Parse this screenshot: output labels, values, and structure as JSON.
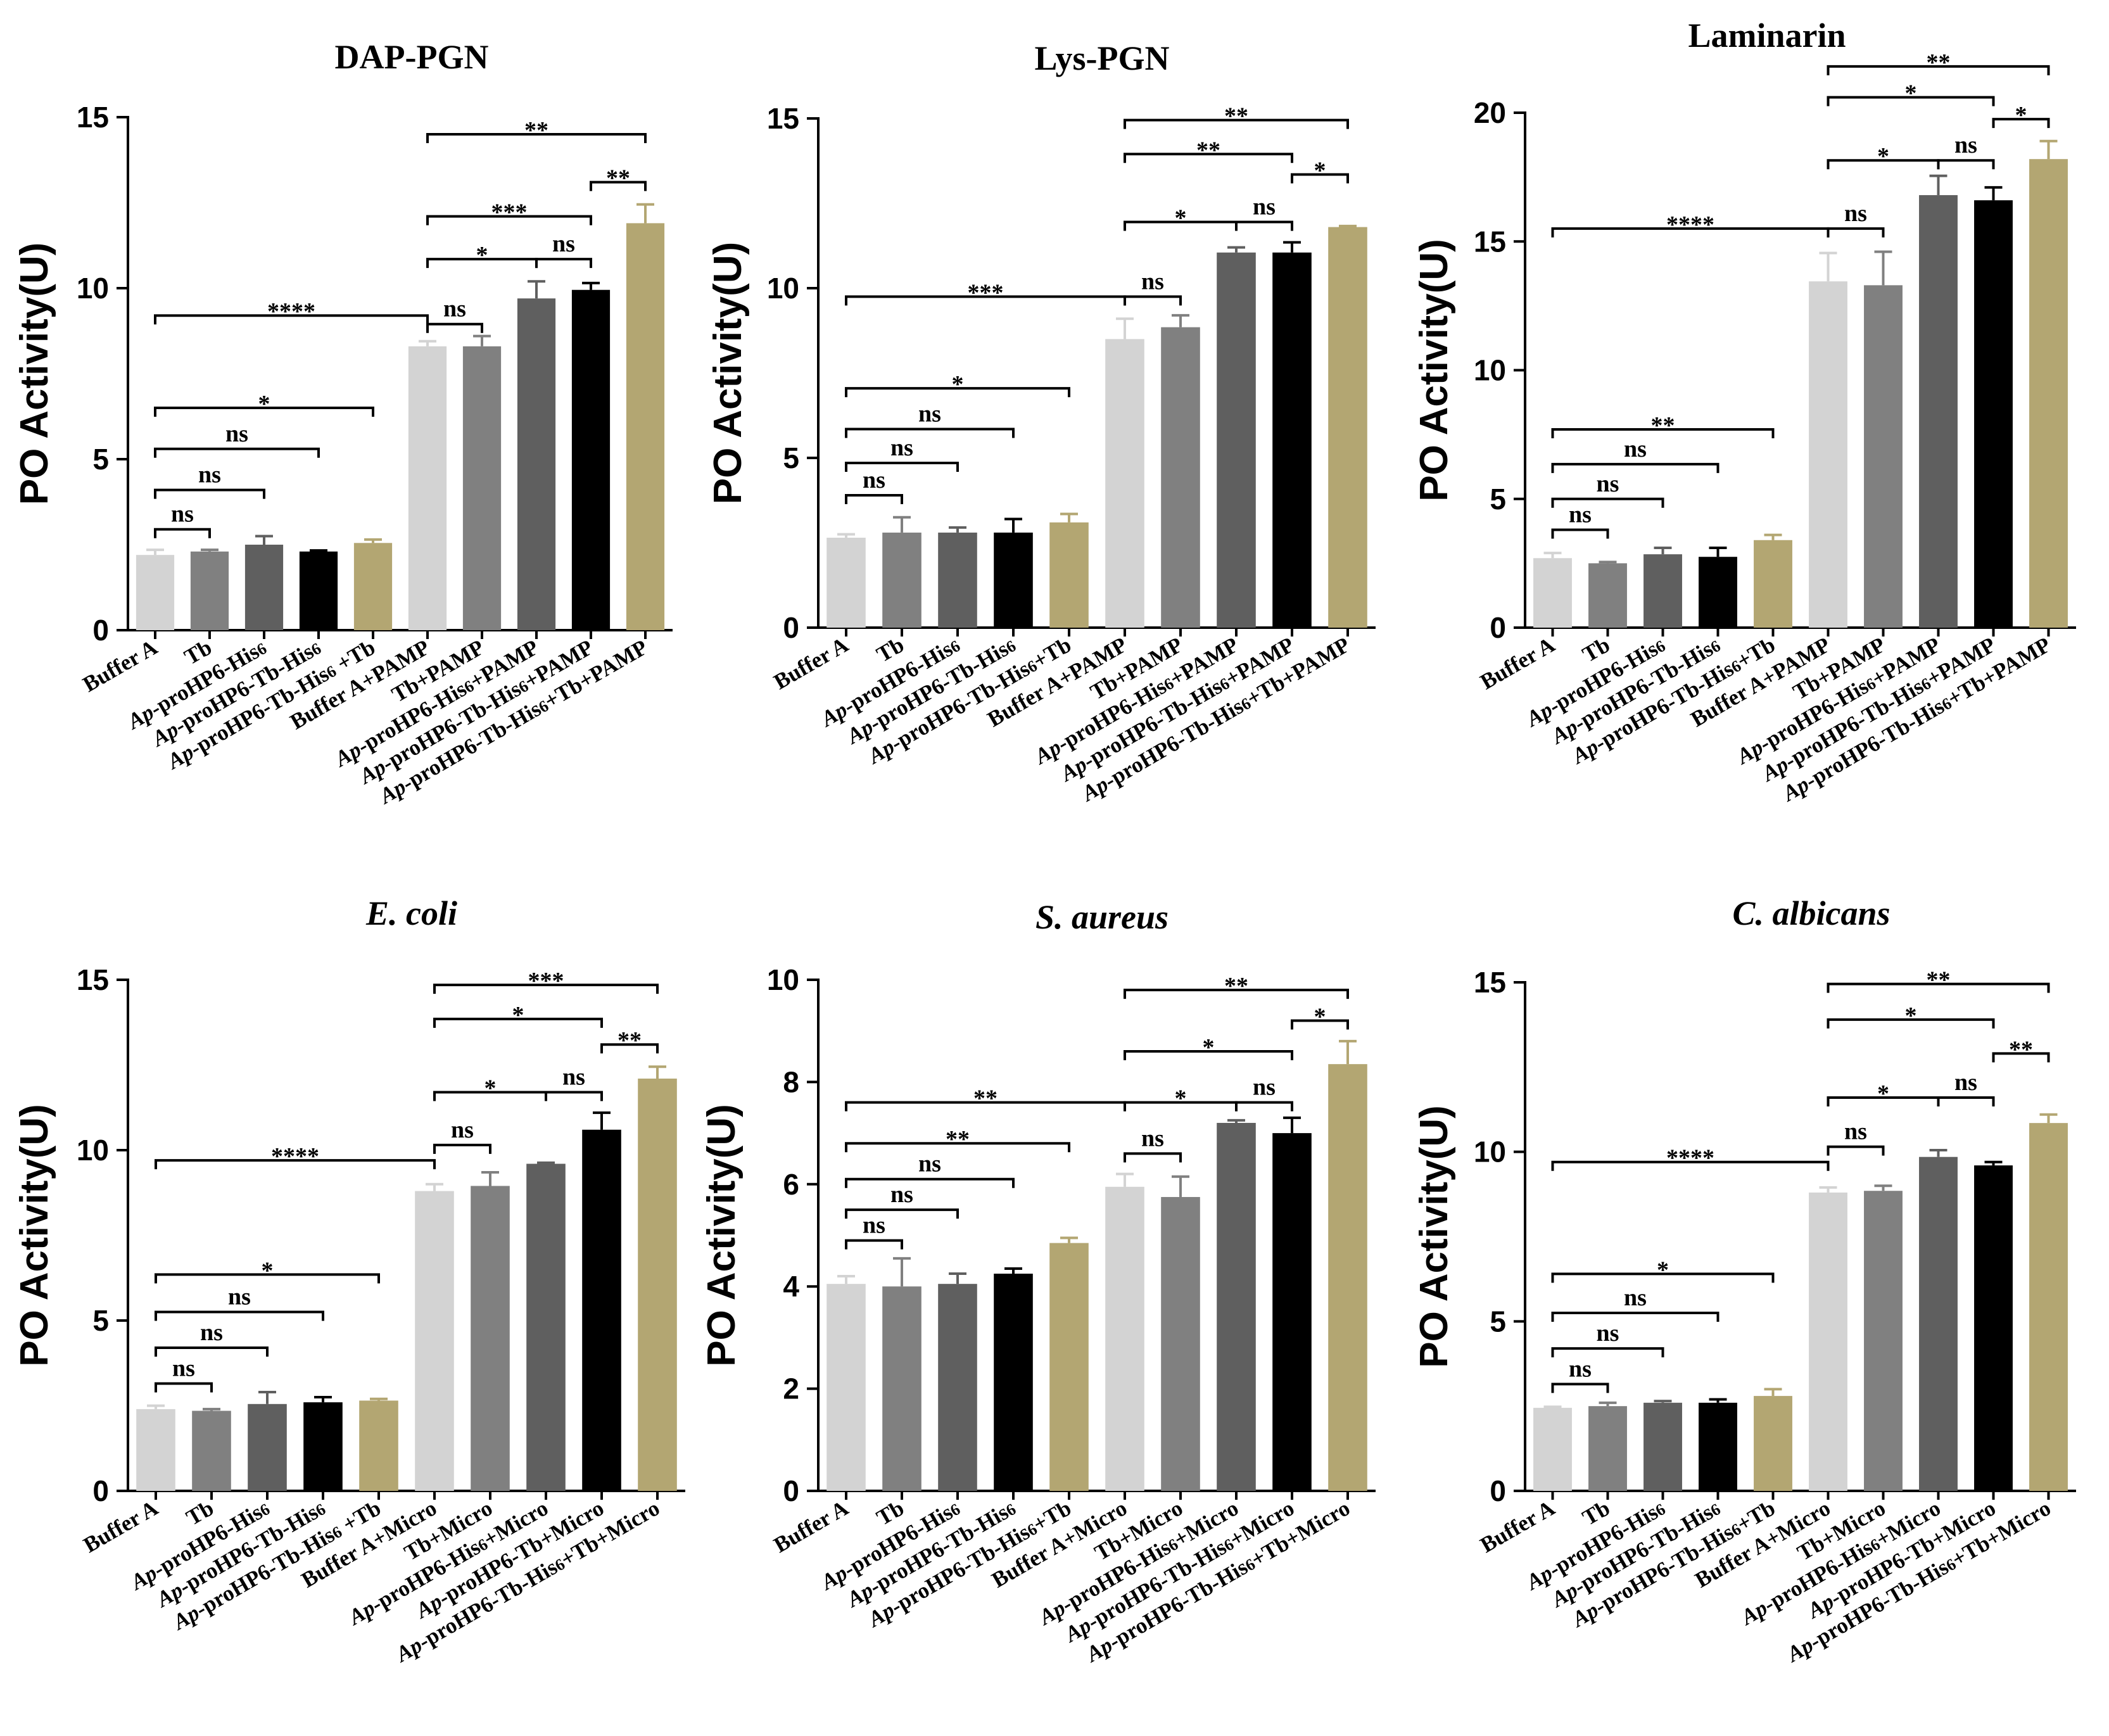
{
  "figure": {
    "y_axis_label": "PO Activity(U)",
    "bar_colors": [
      "#d3d3d3",
      "#808080",
      "#5f5f5f",
      "#000000",
      "#b3a672",
      "#d3d3d3",
      "#808080",
      "#5f5f5f",
      "#000000",
      "#b3a672"
    ]
  },
  "chart_data": [
    {
      "type": "bar",
      "title": "DAP-PGN",
      "title_italic": false,
      "ylabel": "PO Activity(U)",
      "ylim": [
        0,
        15
      ],
      "yticks": [
        0,
        5,
        10,
        15
      ],
      "categories": [
        "Buffer A",
        "Tb",
        "Ap-proHP6-His6",
        "Ap-proHP6-Tb-His6",
        "Ap-proHP6-Tb-His6 +Tb",
        "Buffer A+PAMP",
        "Tb+PAMP",
        "Ap-proHP6-His6+PAMP",
        "Ap-proHP6-Tb-His6+PAMP",
        "Ap-proHP6-Tb-His6+Tb+PAMP"
      ],
      "values": [
        2.2,
        2.3,
        2.5,
        2.3,
        2.55,
        8.3,
        8.3,
        9.7,
        9.95,
        11.9
      ],
      "errors": [
        0.15,
        0.05,
        0.25,
        0.03,
        0.1,
        0.15,
        0.3,
        0.5,
        0.2,
        0.55
      ],
      "comparisons": [
        {
          "from": 0,
          "to": 1,
          "label": "ns",
          "y": 2.95
        },
        {
          "from": 0,
          "to": 2,
          "label": "ns",
          "y": 4.1
        },
        {
          "from": 0,
          "to": 3,
          "label": "ns",
          "y": 5.3
        },
        {
          "from": 0,
          "to": 4,
          "label": "*",
          "y": 6.5
        },
        {
          "from": 0,
          "to": 5,
          "label": "****",
          "y": 9.2
        },
        {
          "from": 5,
          "to": 6,
          "label": "ns",
          "y": 8.95
        },
        {
          "from": 5,
          "to": 7,
          "label": "*",
          "y": 10.85
        },
        {
          "from": 7,
          "to": 8,
          "label": "ns",
          "y": 10.85
        },
        {
          "from": 5,
          "to": 8,
          "label": "***",
          "y": 12.1
        },
        {
          "from": 8,
          "to": 9,
          "label": "**",
          "y": 13.1
        },
        {
          "from": 5,
          "to": 9,
          "label": "**",
          "y": 14.5
        }
      ]
    },
    {
      "type": "bar",
      "title": "Lys-PGN",
      "title_italic": false,
      "ylabel": "PO Activity(U)",
      "ylim": [
        0,
        15
      ],
      "yticks": [
        0,
        5,
        10,
        15
      ],
      "categories": [
        "Buffer A",
        "Tb",
        "Ap-proHP6-His6",
        "Ap-proHP6-Tb-His6",
        "Ap-proHP6-Tb-His6+Tb",
        "Buffer A+PAMP",
        "Tb+PAMP",
        "Ap-proHP6-His6+PAMP",
        "Ap-proHP6-Tb-His6+PAMP",
        "Ap-proHP6-Tb-His6+Tb+PAMP"
      ],
      "values": [
        2.65,
        2.8,
        2.8,
        2.8,
        3.1,
        8.5,
        8.85,
        11.05,
        11.05,
        11.8
      ],
      "errors": [
        0.1,
        0.45,
        0.15,
        0.4,
        0.25,
        0.6,
        0.35,
        0.15,
        0.3,
        0.03
      ],
      "comparisons": [
        {
          "from": 0,
          "to": 1,
          "label": "ns",
          "y": 3.9
        },
        {
          "from": 0,
          "to": 2,
          "label": "ns",
          "y": 4.85
        },
        {
          "from": 0,
          "to": 3,
          "label": "ns",
          "y": 5.85
        },
        {
          "from": 0,
          "to": 4,
          "label": "*",
          "y": 7.05
        },
        {
          "from": 0,
          "to": 5,
          "label": "***",
          "y": 9.75
        },
        {
          "from": 5,
          "to": 6,
          "label": "ns",
          "y": 9.75
        },
        {
          "from": 5,
          "to": 7,
          "label": "*",
          "y": 11.95
        },
        {
          "from": 7,
          "to": 8,
          "label": "ns",
          "y": 11.95
        },
        {
          "from": 8,
          "to": 9,
          "label": "*",
          "y": 13.35
        },
        {
          "from": 5,
          "to": 8,
          "label": "**",
          "y": 13.95
        },
        {
          "from": 5,
          "to": 9,
          "label": "**",
          "y": 14.95
        }
      ]
    },
    {
      "type": "bar",
      "title": "Laminarin",
      "title_italic": false,
      "ylabel": "PO Activity(U)",
      "ylim": [
        0,
        20
      ],
      "yticks": [
        0,
        5,
        10,
        15,
        20
      ],
      "categories": [
        "Buffer A",
        "Tb",
        "Ap-proHP6-His6",
        "Ap-proHP6-Tb-His6",
        "Ap-proHP6-Tb-His6+Tb",
        "Buffer A+PAMP",
        "Tb+PAMP",
        "Ap-proHP6-His6+PAMP",
        "Ap-proHP6-Tb-His6+PAMP",
        "Ap-proHP6-Tb-His6+Tb+PAMP"
      ],
      "values": [
        2.7,
        2.5,
        2.85,
        2.75,
        3.4,
        13.45,
        13.3,
        16.8,
        16.6,
        18.2
      ],
      "errors": [
        0.2,
        0.05,
        0.25,
        0.35,
        0.2,
        1.1,
        1.3,
        0.75,
        0.5,
        0.7
      ],
      "comparisons": [
        {
          "from": 0,
          "to": 1,
          "label": "ns",
          "y": 3.8
        },
        {
          "from": 0,
          "to": 2,
          "label": "ns",
          "y": 5.0
        },
        {
          "from": 0,
          "to": 3,
          "label": "ns",
          "y": 6.35
        },
        {
          "from": 0,
          "to": 4,
          "label": "**",
          "y": 7.7
        },
        {
          "from": 0,
          "to": 5,
          "label": "****",
          "y": 15.5
        },
        {
          "from": 5,
          "to": 6,
          "label": "ns",
          "y": 15.5
        },
        {
          "from": 5,
          "to": 7,
          "label": "*",
          "y": 18.15
        },
        {
          "from": 7,
          "to": 8,
          "label": "ns",
          "y": 18.15
        },
        {
          "from": 8,
          "to": 9,
          "label": "*",
          "y": 19.75
        },
        {
          "from": 5,
          "to": 8,
          "label": "*",
          "y": 20.6
        },
        {
          "from": 5,
          "to": 9,
          "label": "**",
          "y": 21.8
        }
      ]
    },
    {
      "type": "bar",
      "title": "E. coli",
      "title_italic": true,
      "ylabel": "PO Activity(U)",
      "ylim": [
        0,
        15
      ],
      "yticks": [
        0,
        5,
        10,
        15
      ],
      "categories": [
        "Buffer A",
        "Tb",
        "Ap-proHP6-His6",
        "Ap-proHP6-Tb-His6",
        "Ap-proHP6-Tb-His6 +Tb",
        "Buffer A+Micro",
        "Tb+Micro",
        "Ap-proHP6-His6+Micro",
        "Ap-proHP6-Tb+Micro",
        "Ap-proHP6-Tb-His6+Tb+Micro"
      ],
      "values": [
        2.4,
        2.35,
        2.55,
        2.6,
        2.65,
        8.8,
        8.95,
        9.6,
        10.6,
        12.1
      ],
      "errors": [
        0.1,
        0.05,
        0.35,
        0.15,
        0.05,
        0.2,
        0.4,
        0.03,
        0.5,
        0.35
      ],
      "comparisons": [
        {
          "from": 0,
          "to": 1,
          "label": "ns",
          "y": 3.15
        },
        {
          "from": 0,
          "to": 2,
          "label": "ns",
          "y": 4.2
        },
        {
          "from": 0,
          "to": 3,
          "label": "ns",
          "y": 5.25
        },
        {
          "from": 0,
          "to": 4,
          "label": "*",
          "y": 6.35
        },
        {
          "from": 0,
          "to": 5,
          "label": "****",
          "y": 9.7
        },
        {
          "from": 5,
          "to": 6,
          "label": "ns",
          "y": 10.15
        },
        {
          "from": 5,
          "to": 7,
          "label": "*",
          "y": 11.7
        },
        {
          "from": 7,
          "to": 8,
          "label": "ns",
          "y": 11.7
        },
        {
          "from": 8,
          "to": 9,
          "label": "**",
          "y": 13.1
        },
        {
          "from": 5,
          "to": 8,
          "label": "*",
          "y": 13.85
        },
        {
          "from": 5,
          "to": 9,
          "label": "***",
          "y": 14.85
        }
      ]
    },
    {
      "type": "bar",
      "title": "S. aureus",
      "title_italic": true,
      "ylabel": "PO Activity(U)",
      "ylim": [
        0,
        10
      ],
      "yticks": [
        0,
        2,
        4,
        6,
        8,
        10
      ],
      "categories": [
        "Buffer A",
        "Tb",
        "Ap-proHP6-His6",
        "Ap-proHP6-Tb-His6",
        "Ap-proHP6-Tb-His6+Tb",
        "Buffer A+Micro",
        "Tb+Micro",
        "Ap-proHP6-His6+Micro",
        "Ap-proHP6-Tb-His6+Micro",
        "Ap-proHP6-Tb-His6+Tb+Micro"
      ],
      "values": [
        4.05,
        4.0,
        4.05,
        4.25,
        4.85,
        5.95,
        5.75,
        7.2,
        7.0,
        8.35
      ],
      "errors": [
        0.15,
        0.55,
        0.2,
        0.1,
        0.1,
        0.25,
        0.4,
        0.05,
        0.3,
        0.45
      ],
      "comparisons": [
        {
          "from": 0,
          "to": 1,
          "label": "ns",
          "y": 4.9
        },
        {
          "from": 0,
          "to": 2,
          "label": "ns",
          "y": 5.5
        },
        {
          "from": 0,
          "to": 3,
          "label": "ns",
          "y": 6.1
        },
        {
          "from": 0,
          "to": 4,
          "label": "**",
          "y": 6.8
        },
        {
          "from": 0,
          "to": 5,
          "label": "**",
          "y": 7.6
        },
        {
          "from": 5,
          "to": 6,
          "label": "ns",
          "y": 6.6
        },
        {
          "from": 5,
          "to": 7,
          "label": "*",
          "y": 7.6
        },
        {
          "from": 7,
          "to": 8,
          "label": "ns",
          "y": 7.6
        },
        {
          "from": 5,
          "to": 8,
          "label": "*",
          "y": 8.6
        },
        {
          "from": 8,
          "to": 9,
          "label": "*",
          "y": 9.2
        },
        {
          "from": 5,
          "to": 9,
          "label": "**",
          "y": 9.8
        }
      ]
    },
    {
      "type": "bar",
      "title": "C. albicans",
      "title_italic": true,
      "ylabel": "PO Activity(U)",
      "ylim": [
        0,
        15
      ],
      "yticks": [
        0,
        5,
        10,
        15
      ],
      "categories": [
        "Buffer A",
        "Tb",
        "Ap-proHP6-His6",
        "Ap-proHP6-Tb-His6",
        "Ap-proHP6-Tb-His6+Tb",
        "Buffer A+Micro",
        "Tb+Micro",
        "Ap-proHP6-His6+Micro",
        "Ap-proHP6-Tb+Micro",
        "Ap-proHP6-Tb-His6+Tb+Micro"
      ],
      "values": [
        2.45,
        2.5,
        2.6,
        2.6,
        2.8,
        8.8,
        8.85,
        9.85,
        9.6,
        10.85
      ],
      "errors": [
        0.03,
        0.1,
        0.05,
        0.1,
        0.2,
        0.15,
        0.15,
        0.2,
        0.1,
        0.25
      ],
      "comparisons": [
        {
          "from": 0,
          "to": 1,
          "label": "ns",
          "y": 3.15
        },
        {
          "from": 0,
          "to": 2,
          "label": "ns",
          "y": 4.2
        },
        {
          "from": 0,
          "to": 3,
          "label": "ns",
          "y": 5.25
        },
        {
          "from": 0,
          "to": 4,
          "label": "*",
          "y": 6.4
        },
        {
          "from": 0,
          "to": 5,
          "label": "****",
          "y": 9.7
        },
        {
          "from": 5,
          "to": 6,
          "label": "ns",
          "y": 10.15
        },
        {
          "from": 5,
          "to": 7,
          "label": "*",
          "y": 11.6
        },
        {
          "from": 7,
          "to": 8,
          "label": "ns",
          "y": 11.6
        },
        {
          "from": 8,
          "to": 9,
          "label": "**",
          "y": 12.9
        },
        {
          "from": 5,
          "to": 8,
          "label": "*",
          "y": 13.9
        },
        {
          "from": 5,
          "to": 9,
          "label": "**",
          "y": 14.95
        }
      ]
    }
  ]
}
